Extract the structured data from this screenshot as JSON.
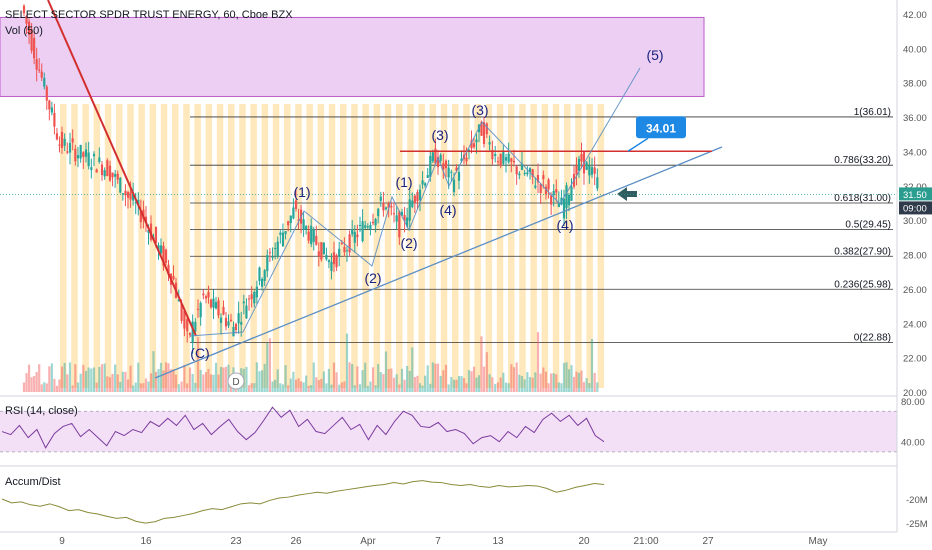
{
  "header": {
    "symbol_line": "SELECT SECTOR SPDR TRUST ENERGY, 60, Cboe BZX",
    "volume_label": "Vol (50)"
  },
  "colors": {
    "up": "#26a69a",
    "down": "#ef5350",
    "highlight_band": "#ffe0a6",
    "zone_fill": "#e9c7f0",
    "zone_stroke": "#b040c0",
    "rsi_line": "#7b3b9e",
    "ad_line": "#8a8a3a",
    "trendline_red": "#d32f2f",
    "trendline_blue": "#5b8ec4",
    "price_tag": "#1e88e5",
    "current_price_tag": "#2a9d8f"
  },
  "chart_data": [
    {
      "type": "candlestick",
      "title": "SELECT SECTOR SPDR TRUST ENERGY, 60, Cboe BZX",
      "interval": "60",
      "ylim": [
        19.5,
        42.8
      ],
      "price_ticks": [
        "42.00",
        "40.00",
        "38.00",
        "36.00",
        "34.00",
        "32.00",
        "30.00",
        "28.00",
        "26.00",
        "24.00",
        "22.00",
        "20.00"
      ],
      "x_ticks": [
        "9",
        "16",
        "23",
        "26",
        "Apr",
        "7",
        "13",
        "20",
        "21:00",
        "27",
        "May"
      ],
      "grid": false,
      "current_price": "31.50",
      "countdown": "09:00",
      "price_path": [
        {
          "x": "Mar 6",
          "y": 42.5
        },
        {
          "x": "Mar 9",
          "y": 34.5
        },
        {
          "x": "Mar 12",
          "y": 33.0
        },
        {
          "x": "Mar 16",
          "y": 30.2
        },
        {
          "x": "Mar 18",
          "y": 26.5
        },
        {
          "x": "Mar 19",
          "y": 23.0
        },
        {
          "x": "Mar 20",
          "y": 25.5
        },
        {
          "x": "Mar 23",
          "y": 23.8
        },
        {
          "x": "Mar 26",
          "y": 30.5
        },
        {
          "x": "Mar 30",
          "y": 27.5
        },
        {
          "x": "Apr 2",
          "y": 31.0
        },
        {
          "x": "Apr 3",
          "y": 29.6
        },
        {
          "x": "Apr 7",
          "y": 33.8
        },
        {
          "x": "Apr 8",
          "y": 32.3
        },
        {
          "x": "Apr 10",
          "y": 35.3
        },
        {
          "x": "Apr 13",
          "y": 33.8
        },
        {
          "x": "Apr 16",
          "y": 32.0
        },
        {
          "x": "Apr 17",
          "y": 30.8
        },
        {
          "x": "Apr 20",
          "y": 33.5
        },
        {
          "x": "Apr 21",
          "y": 32.2
        }
      ],
      "fibonacci": [
        {
          "ratio": "1",
          "level": 36.01,
          "label": "1(36.01)"
        },
        {
          "ratio": "0.786",
          "level": 33.2,
          "label": "0.786(33.20)"
        },
        {
          "ratio": "0.618",
          "level": 31.0,
          "label": "0.618(31.00)"
        },
        {
          "ratio": "0.5",
          "level": 29.45,
          "label": "0.5(29.45)"
        },
        {
          "ratio": "0.382",
          "level": 27.9,
          "label": "0.382(27.90)"
        },
        {
          "ratio": "0.236",
          "level": 25.98,
          "label": "0.236(25.98)"
        },
        {
          "ratio": "0",
          "level": 22.88,
          "label": "0(22.88)"
        }
      ],
      "horizontal_resistance": 34.01,
      "target_label": "34.01",
      "zone": {
        "from": 37.2,
        "to": 41.8
      },
      "wave_labels": [
        {
          "text": "(C)",
          "x": "Mar 19",
          "y": 22.6
        },
        {
          "text": "(1)",
          "x": "Mar 26",
          "y": 32.2
        },
        {
          "text": "(2)",
          "x": "Mar 31",
          "y": 26.8
        },
        {
          "text": "(1)",
          "x": "Apr 2",
          "y": 32.1
        },
        {
          "text": "(2)",
          "x": "Apr 3",
          "y": 29.3
        },
        {
          "text": "(3)",
          "x": "Apr 6",
          "y": 34.8
        },
        {
          "text": "(4)",
          "x": "Apr 8",
          "y": 30.8
        },
        {
          "text": "(3)",
          "x": "Apr 10",
          "y": 36.2
        },
        {
          "text": "(4)",
          "x": "Apr 17",
          "y": 29.6
        },
        {
          "text": "(5)",
          "x": "Apr 23",
          "y": 39.7
        }
      ],
      "event_marker": "D"
    },
    {
      "type": "line",
      "title": "RSI (14, close)",
      "ylim": [
        20,
        85
      ],
      "ticks": [
        "80.00",
        "40.00"
      ],
      "band": [
        30,
        70
      ],
      "values": [
        50,
        47,
        56,
        44,
        52,
        34,
        48,
        55,
        58,
        45,
        52,
        44,
        36,
        50,
        46,
        52,
        49,
        60,
        55,
        63,
        56,
        66,
        52,
        58,
        47,
        55,
        62,
        50,
        42,
        49,
        61,
        74,
        64,
        71,
        55,
        62,
        50,
        48,
        56,
        64,
        52,
        57,
        42,
        56,
        47,
        60,
        70,
        66,
        55,
        54,
        59,
        50,
        52,
        48,
        38,
        44,
        46,
        40,
        50,
        44,
        55,
        49,
        62,
        68,
        60,
        66,
        56,
        63,
        46,
        40
      ]
    },
    {
      "type": "line",
      "title": "Accum/Dist",
      "ticks": [
        "-20M",
        "-25M"
      ],
      "ylim": [
        -26,
        -14
      ],
      "values": [
        -20.0,
        -20.8,
        -20.6,
        -21.2,
        -21.5,
        -21.0,
        -21.6,
        -22.4,
        -22.2,
        -22.8,
        -23.1,
        -23.6,
        -24.0,
        -23.8,
        -24.6,
        -25.0,
        -24.7,
        -24.0,
        -23.8,
        -23.4,
        -23.0,
        -22.4,
        -22.0,
        -22.2,
        -21.6,
        -21.0,
        -20.8,
        -21.0,
        -20.3,
        -19.8,
        -19.6,
        -19.2,
        -18.9,
        -18.6,
        -18.8,
        -18.4,
        -18.1,
        -17.8,
        -17.5,
        -17.2,
        -17.0,
        -16.6,
        -16.9,
        -16.4,
        -16.2,
        -16.5,
        -16.6,
        -17.0,
        -17.2,
        -17.0,
        -17.4,
        -17.6,
        -17.2,
        -17.5,
        -17.4,
        -17.2,
        -17.3,
        -17.8,
        -18.6,
        -18.2,
        -17.6,
        -17.2,
        -16.8,
        -17.0
      ]
    }
  ]
}
